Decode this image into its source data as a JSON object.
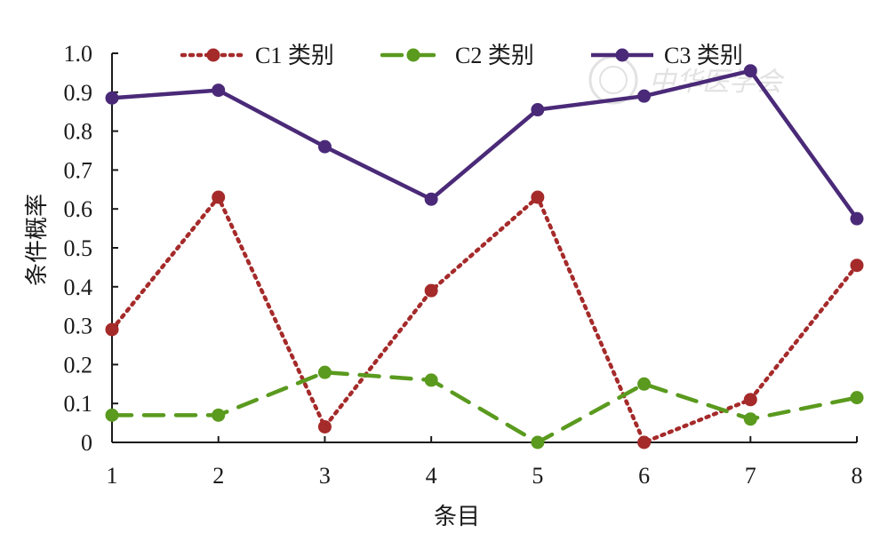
{
  "chart_data": {
    "type": "line",
    "x": [
      1,
      2,
      3,
      4,
      5,
      6,
      7,
      8
    ],
    "xticks": [
      "1",
      "2",
      "3",
      "4",
      "5",
      "6",
      "7",
      "8"
    ],
    "yticks": [
      "0",
      "0.1",
      "0.2",
      "0.3",
      "0.4",
      "0.5",
      "0.6",
      "0.7",
      "0.8",
      "0.9",
      "1.0"
    ],
    "xlabel": "条目",
    "ylabel": "条件概率",
    "xlim": [
      1,
      8
    ],
    "ylim": [
      0,
      1.0
    ],
    "grid": false,
    "legend_position": "top",
    "series": [
      {
        "name": "C1 类别",
        "style": "dotted",
        "color": "#a52a2a",
        "values": [
          0.29,
          0.63,
          0.04,
          0.39,
          0.63,
          0.0,
          0.11,
          0.455
        ]
      },
      {
        "name": "C2 类别",
        "style": "dashed",
        "color": "#5a9a1e",
        "values": [
          0.07,
          0.07,
          0.18,
          0.16,
          0.0,
          0.15,
          0.06,
          0.115
        ]
      },
      {
        "name": "C3 类别",
        "style": "solid",
        "color": "#4a2a78",
        "values": [
          0.885,
          0.905,
          0.76,
          0.625,
          0.855,
          0.89,
          0.955,
          0.575
        ]
      }
    ]
  },
  "watermark": {
    "text": "中华医学会",
    "icon": "emblem-icon"
  }
}
